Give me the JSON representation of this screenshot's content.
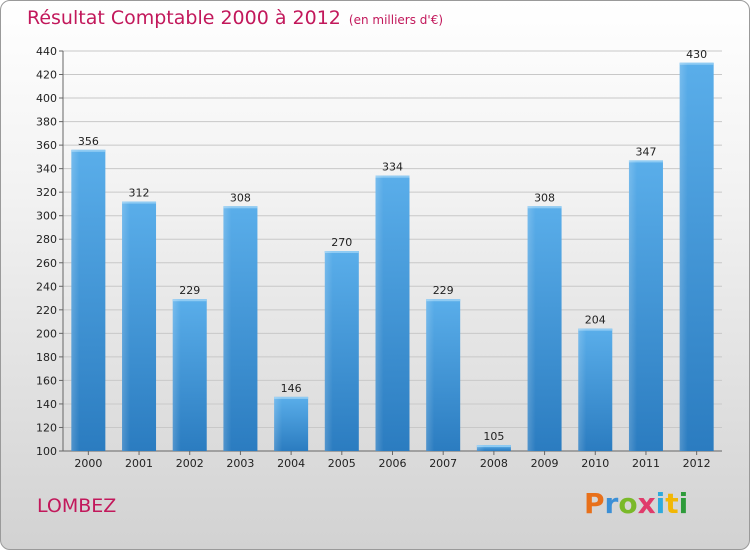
{
  "chart_data": {
    "type": "bar",
    "title": "Résultat Comptable 2000 à 2012",
    "subtitle": "(en milliers d'€)",
    "categories": [
      "2000",
      "2001",
      "2002",
      "2003",
      "2004",
      "2005",
      "2006",
      "2007",
      "2008",
      "2009",
      "2010",
      "2011",
      "2012"
    ],
    "values": [
      356,
      312,
      229,
      308,
      146,
      270,
      334,
      229,
      105,
      308,
      204,
      347,
      430
    ],
    "ylim": [
      100,
      440
    ],
    "yticks": [
      100,
      120,
      140,
      160,
      180,
      200,
      220,
      240,
      260,
      280,
      300,
      320,
      340,
      360,
      380,
      400,
      420,
      440
    ],
    "grid": true,
    "xlabel": "",
    "ylabel": "",
    "bar_color": "#4a9fe0"
  },
  "footer": {
    "place": "LOMBEZ",
    "logo_text": "Proxiti",
    "logo_colors": [
      "#e8701a",
      "#3b8fd6",
      "#7ab929",
      "#e03b6b",
      "#2eaadc",
      "#f2b705",
      "#2e9b3a"
    ]
  }
}
